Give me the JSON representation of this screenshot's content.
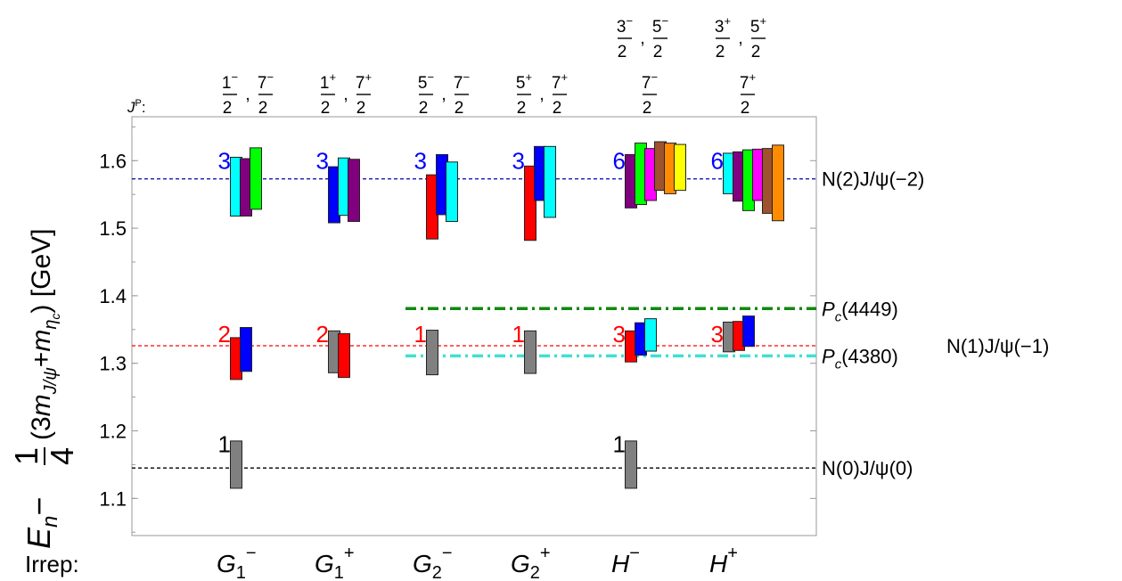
{
  "chart_data": {
    "type": "box",
    "ylabel": {
      "lead": "E",
      "lead_sub": "n",
      "minus": "−",
      "frac_num": "1",
      "frac_den": "4",
      "paren_open": "(3",
      "m1": "m",
      "m1_sub": "J/ψ",
      "plus": "+",
      "m2": "m",
      "m2_sub": "η",
      "m2_subsub": "c",
      "paren_close": ")",
      "unit": "[GeV]"
    },
    "ylim": [
      1.045,
      1.665
    ],
    "yticks": [
      "1.1",
      "1.2",
      "1.3",
      "1.4",
      "1.5",
      "1.6"
    ],
    "irrep_label": "Irrep:",
    "jp_label": {
      "main": "J",
      "sup": "P",
      "colon": ":"
    },
    "categories": [
      {
        "base": "G",
        "sub": "1",
        "sup": "−",
        "jp": [
          [
            "1−",
            "2",
            "7−",
            "2"
          ]
        ]
      },
      {
        "base": "G",
        "sub": "1",
        "sup": "+",
        "jp": [
          [
            "1+",
            "2",
            "7+",
            "2"
          ]
        ]
      },
      {
        "base": "G",
        "sub": "2",
        "sup": "−",
        "jp": [
          [
            "5−",
            "2",
            "7−",
            "2"
          ]
        ]
      },
      {
        "base": "G",
        "sub": "2",
        "sup": "+",
        "jp": [
          [
            "5+",
            "2",
            "7+",
            "2"
          ]
        ]
      },
      {
        "base": "H",
        "sub": "",
        "sup": "−",
        "jp": [
          [
            "3−",
            "2",
            "5−",
            "2"
          ],
          [
            "7−",
            "2"
          ]
        ]
      },
      {
        "base": "H",
        "sub": "",
        "sup": "+",
        "jp": [
          [
            "3+",
            "2",
            "5+",
            "2"
          ],
          [
            "7+",
            "2"
          ]
        ]
      }
    ],
    "thresholds": [
      {
        "label": "N(0)J/ψ(0)",
        "y": 1.145,
        "color": "#000000"
      },
      {
        "label": "N(1)J/ψ(−1)",
        "y": 1.326,
        "color": "#ff0000"
      },
      {
        "label": "N(2)J/ψ(−2)",
        "y": 1.573,
        "color": "#0000aa"
      }
    ],
    "pentaquarks": [
      {
        "name": "P",
        "sub": "c",
        "mass": "(4449)",
        "y": 1.381,
        "color": "#118811"
      },
      {
        "name": "P",
        "sub": "c",
        "mass": "(4380)",
        "y": 1.311,
        "color": "#40e0d0"
      }
    ],
    "counts": [
      {
        "category": 0,
        "value": "1",
        "y": 1.18,
        "color": "#000000"
      },
      {
        "category": 4,
        "value": "1",
        "y": 1.18,
        "color": "#000000"
      },
      {
        "category": 0,
        "value": "2",
        "y": 1.343,
        "color": "#ff0000"
      },
      {
        "category": 1,
        "value": "2",
        "y": 1.343,
        "color": "#ff0000"
      },
      {
        "category": 2,
        "value": "1",
        "y": 1.343,
        "color": "#ff0000"
      },
      {
        "category": 3,
        "value": "1",
        "y": 1.343,
        "color": "#ff0000"
      },
      {
        "category": 4,
        "value": "3",
        "y": 1.343,
        "color": "#ff0000"
      },
      {
        "category": 5,
        "value": "3",
        "y": 1.343,
        "color": "#ff0000"
      },
      {
        "category": 0,
        "value": "3",
        "y": 1.6,
        "color": "#0000ff"
      },
      {
        "category": 1,
        "value": "3",
        "y": 1.6,
        "color": "#0000ff"
      },
      {
        "category": 2,
        "value": "3",
        "y": 1.6,
        "color": "#0000ff"
      },
      {
        "category": 3,
        "value": "3",
        "y": 1.6,
        "color": "#0000ff"
      },
      {
        "category": 4,
        "value": "6",
        "y": 1.6,
        "color": "#0000ff"
      },
      {
        "category": 5,
        "value": "6",
        "y": 1.6,
        "color": "#0000ff"
      }
    ],
    "levels": [
      {
        "category": 0,
        "slot": 0,
        "lo": 1.115,
        "hi": 1.185,
        "color": "#808080"
      },
      {
        "category": 4,
        "slot": 0,
        "lo": 1.115,
        "hi": 1.185,
        "color": "#808080"
      },
      {
        "category": 0,
        "slot": 0,
        "lo": 1.276,
        "hi": 1.338,
        "color": "#ff0000"
      },
      {
        "category": 0,
        "slot": 1,
        "lo": 1.288,
        "hi": 1.353,
        "color": "#0000ff"
      },
      {
        "category": 1,
        "slot": 0,
        "lo": 1.286,
        "hi": 1.348,
        "color": "#808080"
      },
      {
        "category": 1,
        "slot": 1,
        "lo": 1.279,
        "hi": 1.344,
        "color": "#ff0000"
      },
      {
        "category": 2,
        "slot": 0,
        "lo": 1.283,
        "hi": 1.349,
        "color": "#808080"
      },
      {
        "category": 3,
        "slot": 0,
        "lo": 1.285,
        "hi": 1.348,
        "color": "#808080"
      },
      {
        "category": 4,
        "slot": 0,
        "lo": 1.302,
        "hi": 1.348,
        "color": "#ff0000"
      },
      {
        "category": 4,
        "slot": 1,
        "lo": 1.312,
        "hi": 1.36,
        "color": "#0000ff"
      },
      {
        "category": 4,
        "slot": 2,
        "lo": 1.318,
        "hi": 1.366,
        "color": "#00ffff"
      },
      {
        "category": 5,
        "slot": 0,
        "lo": 1.317,
        "hi": 1.361,
        "color": "#808080"
      },
      {
        "category": 5,
        "slot": 1,
        "lo": 1.319,
        "hi": 1.362,
        "color": "#ff0000"
      },
      {
        "category": 5,
        "slot": 2,
        "lo": 1.325,
        "hi": 1.37,
        "color": "#0000ff"
      },
      {
        "category": 0,
        "slot": 0,
        "lo": 1.518,
        "hi": 1.605,
        "color": "#00ffff"
      },
      {
        "category": 0,
        "slot": 1,
        "lo": 1.518,
        "hi": 1.603,
        "color": "#800080"
      },
      {
        "category": 0,
        "slot": 2,
        "lo": 1.528,
        "hi": 1.619,
        "color": "#00ff00"
      },
      {
        "category": 1,
        "slot": 0,
        "lo": 1.508,
        "hi": 1.591,
        "color": "#0000ff"
      },
      {
        "category": 1,
        "slot": 1,
        "lo": 1.519,
        "hi": 1.604,
        "color": "#00ffff"
      },
      {
        "category": 1,
        "slot": 2,
        "lo": 1.51,
        "hi": 1.602,
        "color": "#800080"
      },
      {
        "category": 2,
        "slot": 0,
        "lo": 1.484,
        "hi": 1.579,
        "color": "#ff0000"
      },
      {
        "category": 2,
        "slot": 1,
        "lo": 1.52,
        "hi": 1.609,
        "color": "#0000ff"
      },
      {
        "category": 2,
        "slot": 2,
        "lo": 1.51,
        "hi": 1.598,
        "color": "#00ffff"
      },
      {
        "category": 3,
        "slot": 0,
        "lo": 1.482,
        "hi": 1.592,
        "color": "#ff0000"
      },
      {
        "category": 3,
        "slot": 1,
        "lo": 1.541,
        "hi": 1.621,
        "color": "#0000ff"
      },
      {
        "category": 3,
        "slot": 2,
        "lo": 1.516,
        "hi": 1.621,
        "color": "#00ffff"
      },
      {
        "category": 4,
        "slot": 0,
        "lo": 1.53,
        "hi": 1.609,
        "color": "#800080"
      },
      {
        "category": 4,
        "slot": 1,
        "lo": 1.535,
        "hi": 1.626,
        "color": "#00ff00"
      },
      {
        "category": 4,
        "slot": 2,
        "lo": 1.541,
        "hi": 1.618,
        "color": "#ff00ff"
      },
      {
        "category": 4,
        "slot": 3,
        "lo": 1.556,
        "hi": 1.628,
        "color": "#a0522d"
      },
      {
        "category": 4,
        "slot": 4,
        "lo": 1.551,
        "hi": 1.626,
        "color": "#ff8c00"
      },
      {
        "category": 4,
        "slot": 5,
        "lo": 1.556,
        "hi": 1.624,
        "color": "#ffff00"
      },
      {
        "category": 5,
        "slot": 0,
        "lo": 1.551,
        "hi": 1.611,
        "color": "#00ffff"
      },
      {
        "category": 5,
        "slot": 1,
        "lo": 1.54,
        "hi": 1.613,
        "color": "#800080"
      },
      {
        "category": 5,
        "slot": 2,
        "lo": 1.526,
        "hi": 1.616,
        "color": "#00ff00"
      },
      {
        "category": 5,
        "slot": 3,
        "lo": 1.541,
        "hi": 1.617,
        "color": "#ff00ff"
      },
      {
        "category": 5,
        "slot": 4,
        "lo": 1.522,
        "hi": 1.618,
        "color": "#a0522d"
      },
      {
        "category": 5,
        "slot": 5,
        "lo": 1.511,
        "hi": 1.623,
        "color": "#ff8c00"
      }
    ]
  }
}
